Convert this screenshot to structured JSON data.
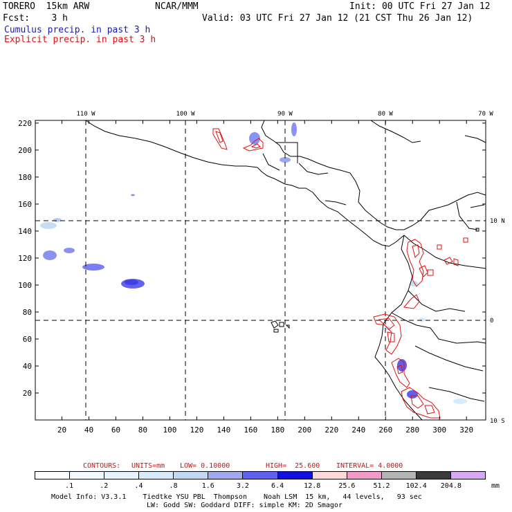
{
  "header": {
    "model": "TORERO  15km ARW",
    "source": "NCAR/MMM",
    "init": "Init: 00 UTC Fri 27 Jan 12",
    "fcst": "Fcst:    3 h",
    "valid": "Valid: 03 UTC Fri 27 Jan 12 (21 CST Thu 26 Jan 12)",
    "field1": "Cumulus precip. in past 3 h",
    "field2": "Explicit precip. in past 3 h"
  },
  "colors": {
    "field1": "#1a1ab0",
    "field2": "#e01010",
    "contour": "#e01010",
    "contour_info": "#d01010"
  },
  "axes": {
    "top_labels": [
      "110 W",
      "100 W",
      "90 W",
      "80 W",
      "70 W"
    ],
    "right_labels": [
      "10 N",
      "0",
      "10 S"
    ],
    "bottom_ticks": [
      "20",
      "40",
      "60",
      "80",
      "100",
      "120",
      "140",
      "160",
      "180",
      "200",
      "220",
      "240",
      "260",
      "280",
      "300",
      "320"
    ],
    "left_ticks": [
      "20",
      "40",
      "60",
      "80",
      "100",
      "120",
      "140",
      "160",
      "180",
      "200",
      "220"
    ]
  },
  "contour_info": {
    "label": "CONTOURS:",
    "units": "UNITS=mm",
    "low": "LOW= 0.10000",
    "high": "HIGH=  25.600",
    "interval": "INTERVAL= 4.0000"
  },
  "legend": {
    "colors": [
      "#ffffff",
      "#f2fbff",
      "#e6f5fb",
      "#d6ecfa",
      "#c0d8f5",
      "#a0a8f0",
      "#6060ee",
      "#1010e0",
      "#fcd8d8",
      "#f29ac8",
      "#b4b4b4",
      "#3a3a3a",
      "#d8a8f4"
    ],
    "labels": [
      ".1",
      ".2",
      ".4",
      ".8",
      "1.6",
      "3.2",
      "6.4",
      "12.8",
      "25.6",
      "51.2",
      "102.4",
      "204.8"
    ],
    "unit": "mm"
  },
  "footer": {
    "line1": "Model Info: V3.3.1    Tiedtke YSU PBL  Thompson    Noah LSM  15 km,   44 levels,   93 sec",
    "line2": "LW: Godd SW: Goddard DIFF: simple KM: 2D Smagor"
  }
}
